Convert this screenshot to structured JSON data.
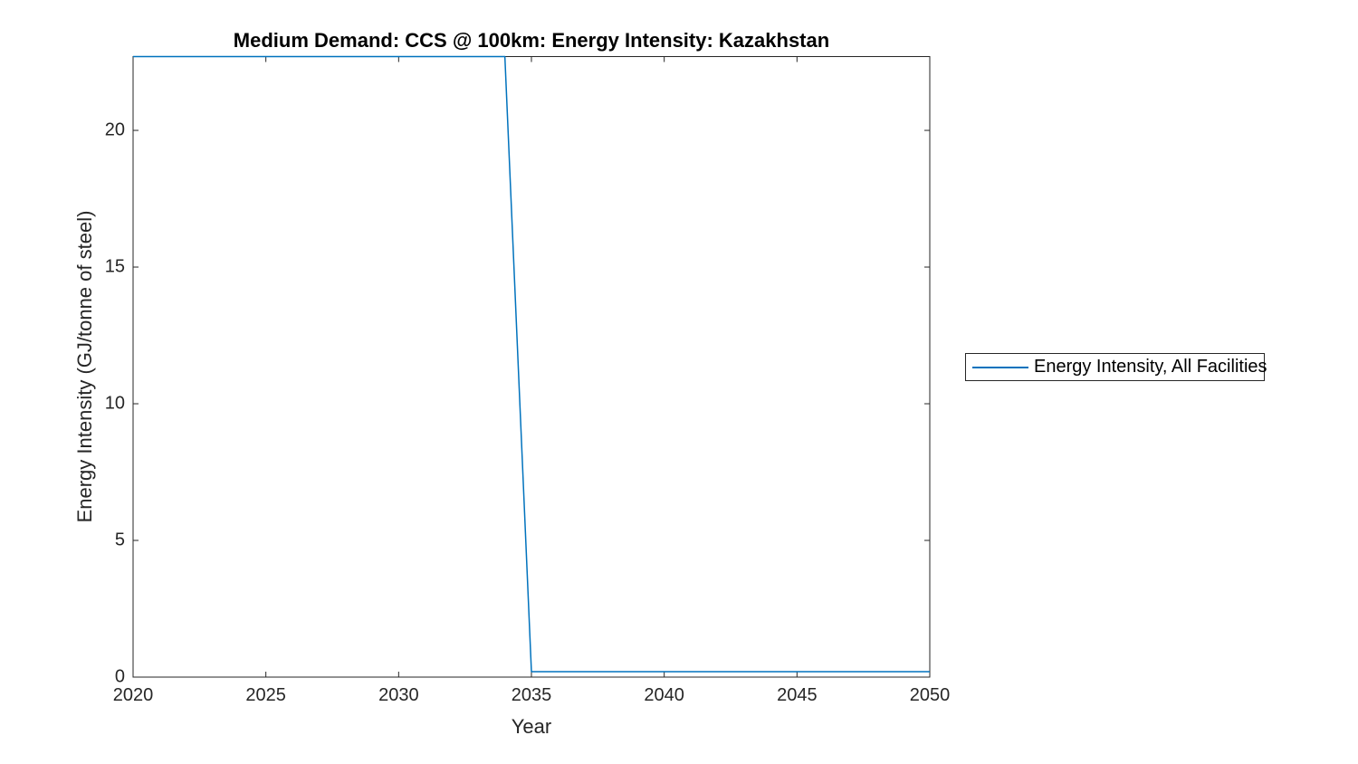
{
  "figure": {
    "background_color": "#ffffff"
  },
  "chart_data": {
    "type": "line",
    "title": "Medium Demand: CCS @ 100km: Energy Intensity: Kazakhstan",
    "xlabel": "Year",
    "ylabel": "Energy Intensity (GJ/tonne of steel)",
    "xlim": [
      2020,
      2050
    ],
    "ylim": [
      0,
      22.7
    ],
    "x_ticks": [
      2020,
      2025,
      2030,
      2035,
      2040,
      2045,
      2050
    ],
    "y_ticks": [
      0,
      5,
      10,
      15,
      20
    ],
    "grid": false,
    "box": true,
    "legend_position": "right-outside",
    "colors": {
      "axis": "#262626",
      "title": "#000000",
      "background": "#ffffff"
    },
    "series": [
      {
        "name": "Energy Intensity, All Facilities",
        "color": "#0072BD",
        "points": [
          [
            2020,
            22.7
          ],
          [
            2034,
            22.7
          ],
          [
            2035,
            0.2
          ],
          [
            2050,
            0.2
          ]
        ]
      }
    ]
  }
}
